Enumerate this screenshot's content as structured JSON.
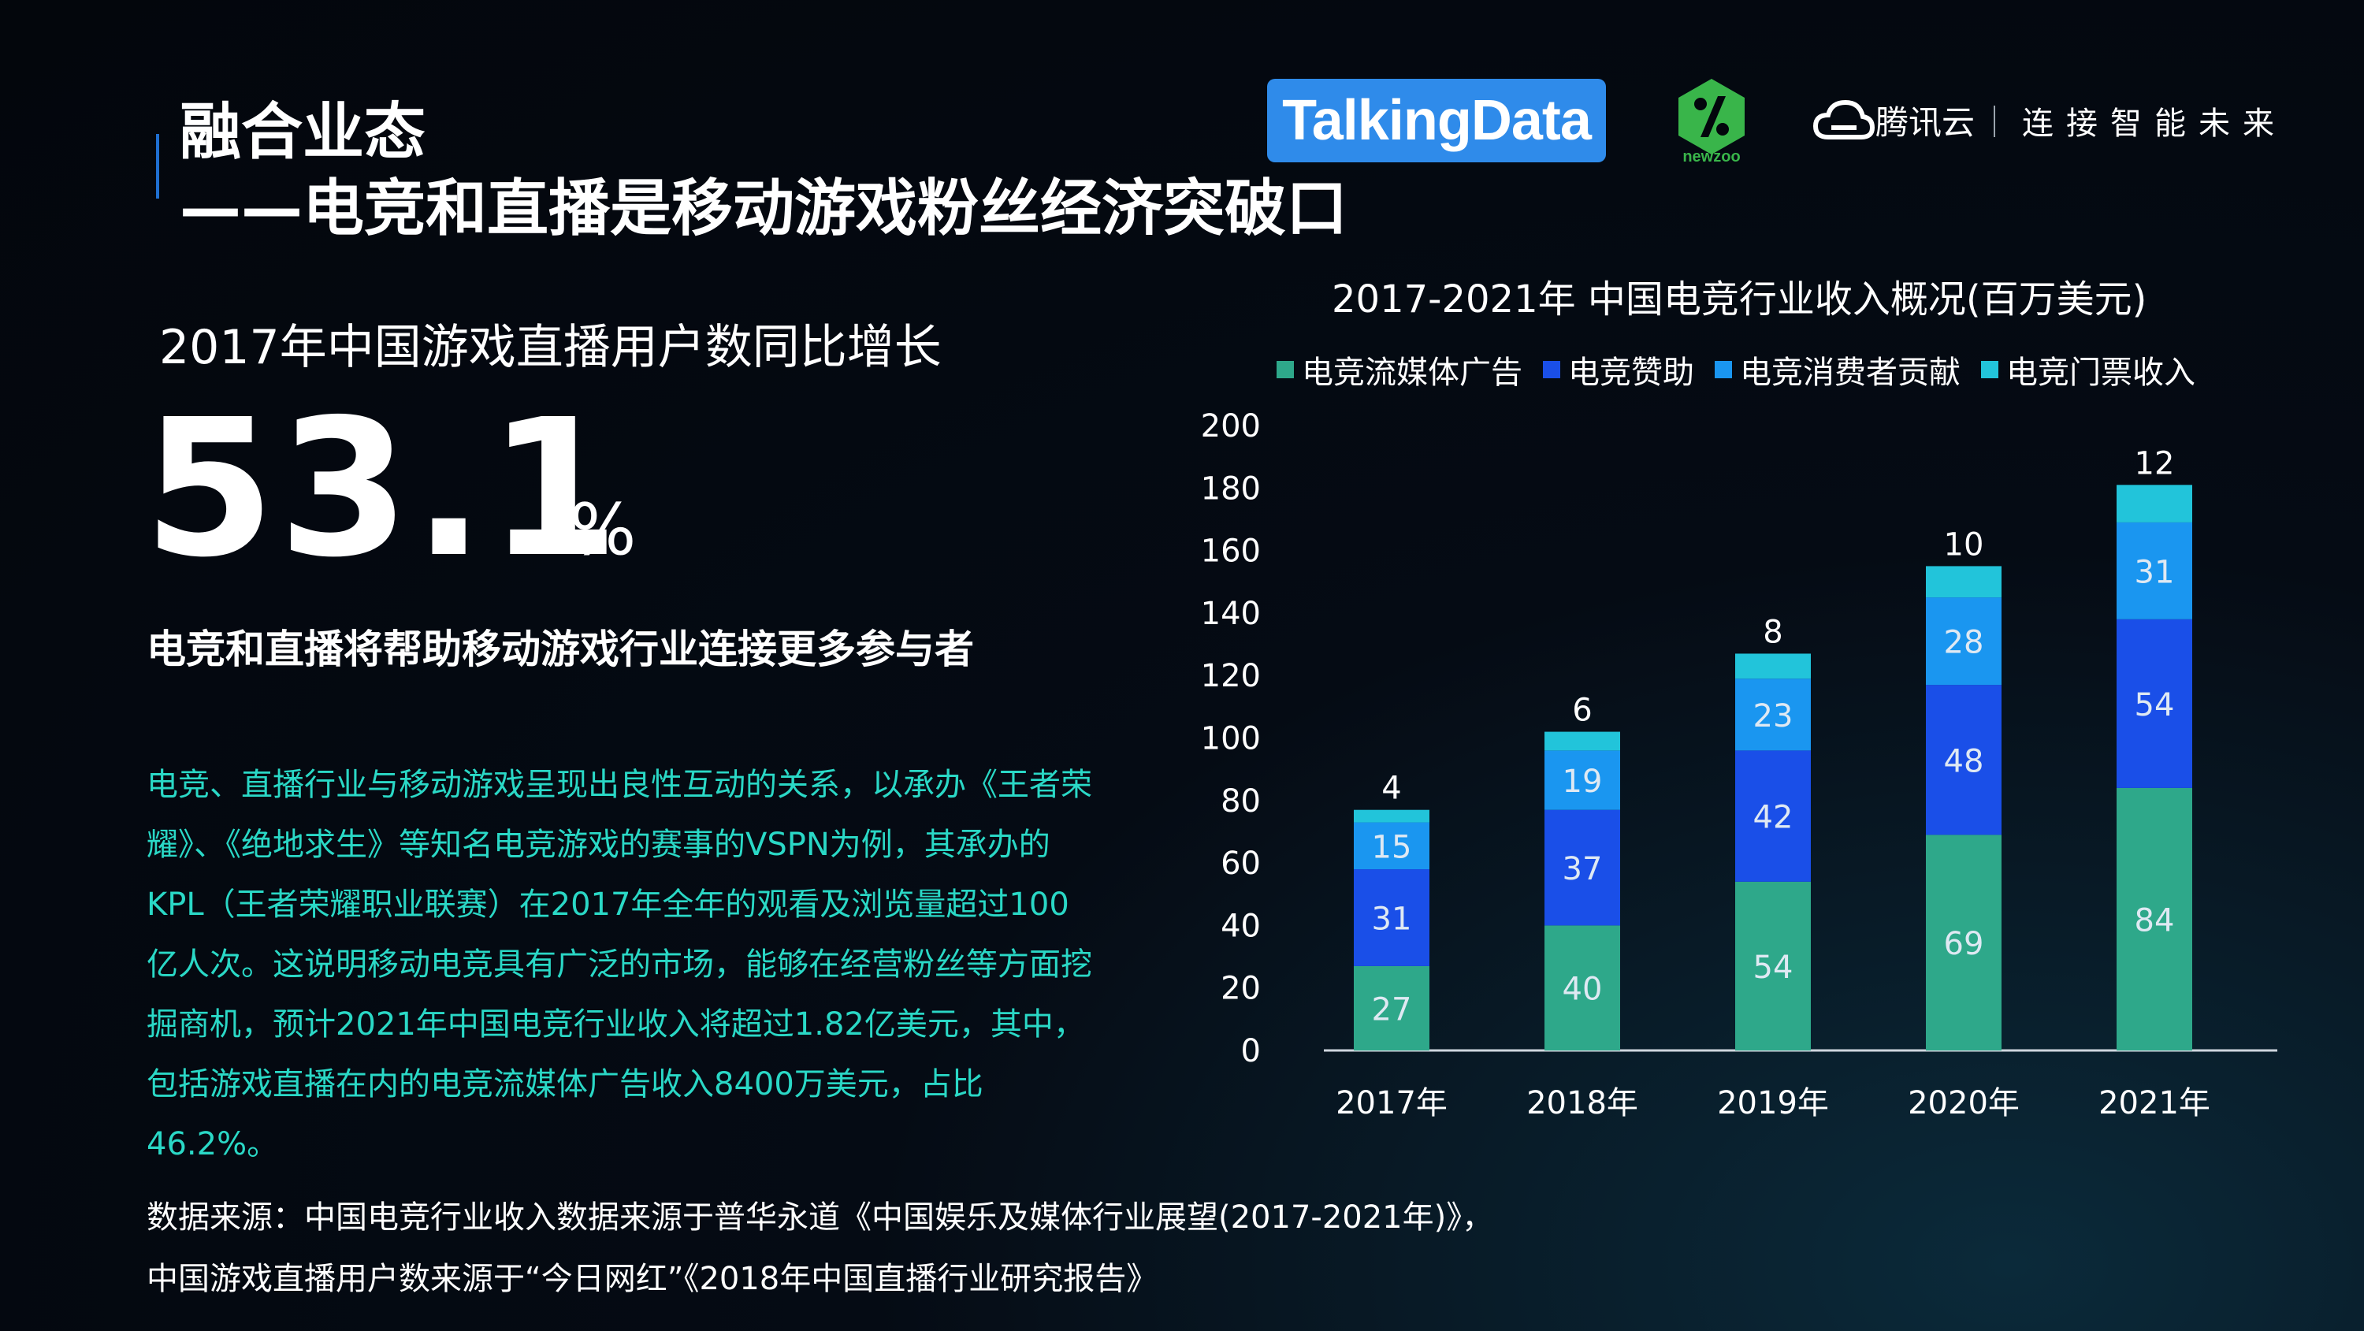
{
  "header": {
    "title_line1": "融合业态",
    "title_line2": "——电竞和直播是移动游戏粉丝经济突破口"
  },
  "logos": {
    "talkingdata": "TalkingData",
    "newzoo": "newzoo",
    "tencent_cloud": "腾讯云",
    "slogan": "连接智能未来"
  },
  "kpi": {
    "label": "2017年中国游戏直播用户数同比增长",
    "value": "53.1",
    "unit": "%"
  },
  "subhead": "电竞和直播将帮助移动游戏行业连接更多参与者",
  "body": "电竞、直播行业与移动游戏呈现出良性互动的关系，以承办《王者荣耀》、《绝地求生》等知名电竞游戏的赛事的VSPN为例，其承办的KPL（王者荣耀职业联赛）在2017年全年的观看及浏览量超过100亿人次。这说明移动电竞具有广泛的市场，能够在经营粉丝等方面挖掘商机，预计2021年中国电竞行业收入将超过1.82亿美元，其中，包括游戏直播在内的电竞流媒体广告收入8400万美元，占比46.2%。",
  "source": {
    "line1": "数据来源：中国电竞行业收入数据来源于普华永道《中国娱乐及媒体行业展望(2017-2021年)》，",
    "line2": "中国游戏直播用户数来源于“今日网红”《2018年中国直播行业研究报告》"
  },
  "colors": {
    "accent": "#1f6fd1",
    "body_text": "#2ad8c6"
  },
  "chart_data": {
    "type": "bar",
    "stacked": true,
    "title": "2017-2021年  中国电竞行业收入概况(百万美元)",
    "categories": [
      "2017年",
      "2018年",
      "2019年",
      "2020年",
      "2021年"
    ],
    "series": [
      {
        "name": "电竞流媒体广告",
        "color": "#2ea88a",
        "values": [
          27,
          40,
          54,
          69,
          84
        ]
      },
      {
        "name": "电竞赞助",
        "color": "#1a4fe8",
        "values": [
          31,
          37,
          42,
          48,
          54
        ]
      },
      {
        "name": "电竞消费者贡献",
        "color": "#1a96f0",
        "values": [
          15,
          19,
          23,
          28,
          31
        ]
      },
      {
        "name": "电竞门票收入",
        "color": "#22c4da",
        "values": [
          4,
          6,
          8,
          10,
          12
        ]
      }
    ],
    "ylim": [
      0,
      200
    ],
    "yticks": [
      0,
      20,
      40,
      60,
      80,
      100,
      120,
      140,
      160,
      180,
      200
    ],
    "legend": "top",
    "grid": false
  }
}
